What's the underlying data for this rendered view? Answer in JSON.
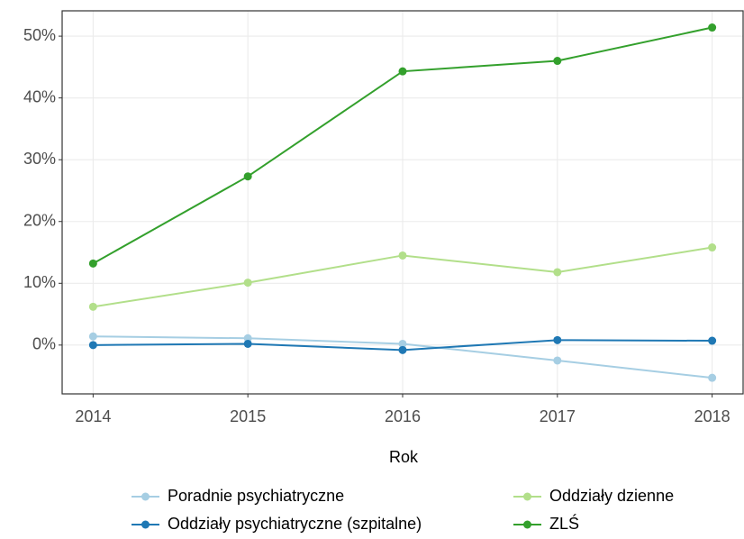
{
  "chart_data": {
    "type": "line",
    "x_label": "Rok",
    "x": [
      2014,
      2015,
      2016,
      2017,
      2018
    ],
    "xlim": [
      2013.8,
      2018.2
    ],
    "xticks": [
      2014,
      2015,
      2016,
      2017,
      2018
    ],
    "ylim": [
      -7.9,
      54.1
    ],
    "yticks": [
      {
        "value": 0,
        "label": "0%"
      },
      {
        "value": 10,
        "label": "10%"
      },
      {
        "value": 20,
        "label": "20%"
      },
      {
        "value": 30,
        "label": "30%"
      },
      {
        "value": 40,
        "label": "40%"
      },
      {
        "value": 50,
        "label": "50%"
      }
    ],
    "grid": true,
    "legend": "bottom",
    "series": [
      {
        "name": "Poradnie psychiatryczne",
        "color": "#a6cee3",
        "values": [
          1.4,
          1.1,
          0.2,
          -2.5,
          -5.3
        ]
      },
      {
        "name": "Oddziały psychiatryczne (szpitalne)",
        "color": "#1f78b4",
        "values": [
          0.0,
          0.2,
          -0.8,
          0.8,
          0.7
        ]
      },
      {
        "name": "Oddziały dzienne",
        "color": "#b2df8a",
        "values": [
          6.2,
          10.1,
          14.5,
          11.8,
          15.8
        ]
      },
      {
        "name": "ZLŚ",
        "color": "#33a02c",
        "values": [
          13.2,
          27.3,
          44.3,
          46.0,
          51.4
        ]
      }
    ]
  }
}
